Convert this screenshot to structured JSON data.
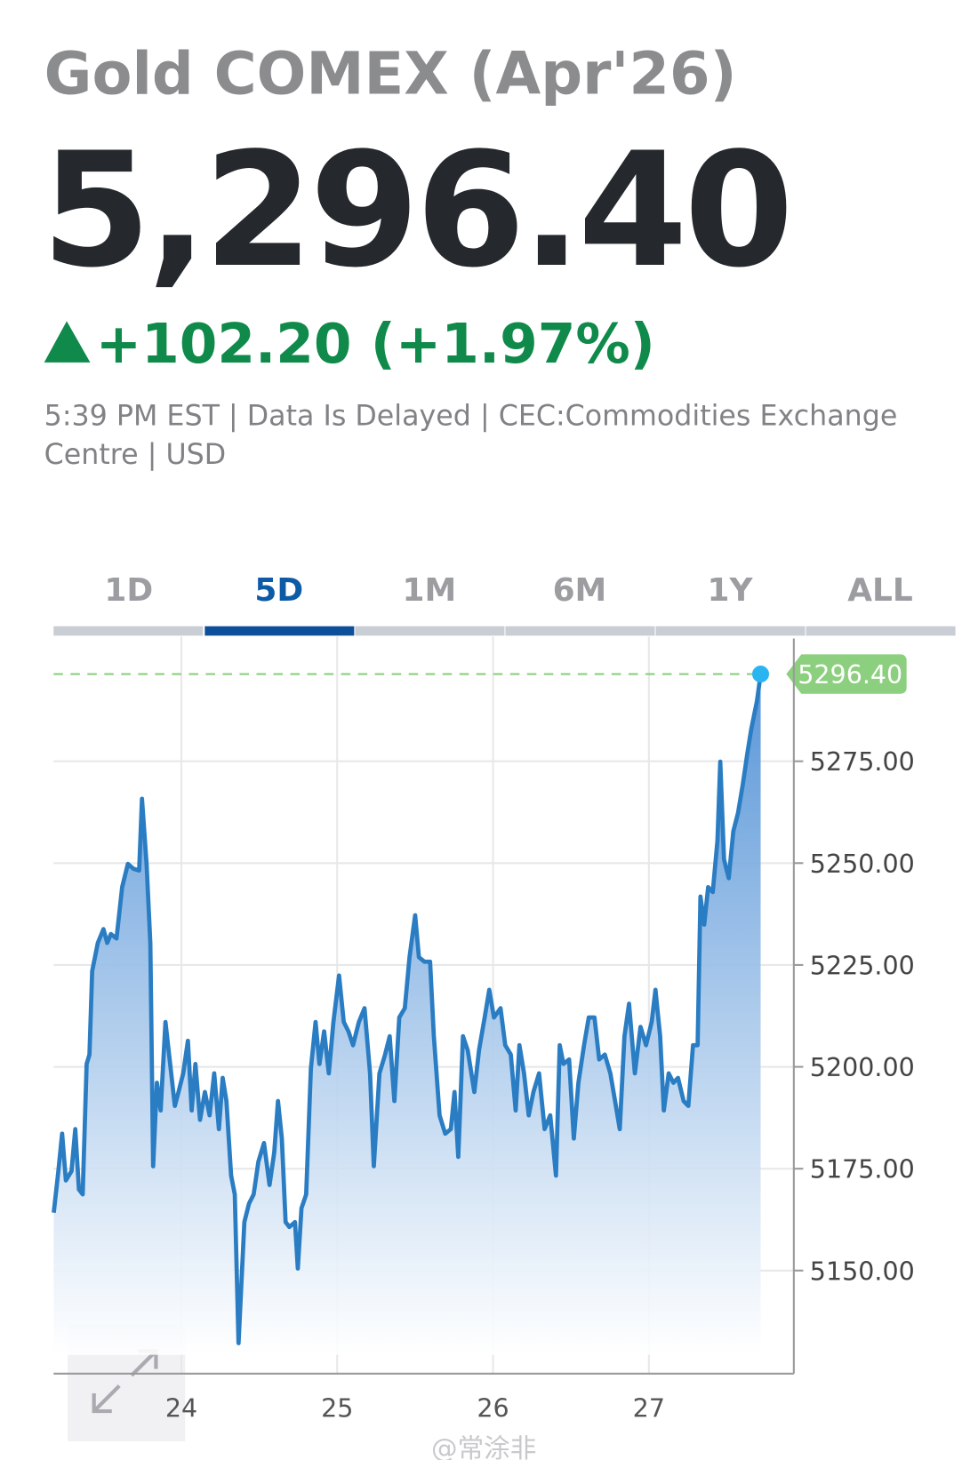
{
  "header": {
    "title": "Gold COMEX (Apr'26)",
    "price": "5,296.40",
    "change": "+102.20 (+1.97%)",
    "info_line1": "5:39 PM EST | Data Is Delayed | CEC:Commodities Exchange",
    "info_line2": "Centre | USD"
  },
  "tabs": [
    "1D",
    "5D",
    "1M",
    "6M",
    "1Y",
    "ALL"
  ],
  "active_tab": 1,
  "watermark": "@常涂非",
  "chart_data": {
    "type": "line",
    "x": [
      23.181,
      23.211,
      23.235,
      23.259,
      23.295,
      23.319,
      23.343,
      23.367,
      23.392,
      23.41,
      23.428,
      23.464,
      23.5,
      23.524,
      23.548,
      23.584,
      23.62,
      23.657,
      23.693,
      23.729,
      23.747,
      23.777,
      23.801,
      23.819,
      23.843,
      23.867,
      23.898,
      23.928,
      23.958,
      23.982,
      24.012,
      24.042,
      24.066,
      24.09,
      24.12,
      24.151,
      24.181,
      24.211,
      24.241,
      24.265,
      24.289,
      24.319,
      24.343,
      24.367,
      24.404,
      24.434,
      24.464,
      24.494,
      24.53,
      24.566,
      24.596,
      24.62,
      24.645,
      24.669,
      24.693,
      24.729,
      24.747,
      24.771,
      24.801,
      24.831,
      24.861,
      24.886,
      24.916,
      24.946,
      24.976,
      25.012,
      25.042,
      25.072,
      25.102,
      25.139,
      25.175,
      25.211,
      25.235,
      25.271,
      25.307,
      25.337,
      25.367,
      25.398,
      25.434,
      25.464,
      25.5,
      25.524,
      25.56,
      25.596,
      25.62,
      25.657,
      25.693,
      25.729,
      25.753,
      25.777,
      25.807,
      25.837,
      25.88,
      25.91,
      25.946,
      25.976,
      26.006,
      26.048,
      26.078,
      26.114,
      26.145,
      26.169,
      26.199,
      26.229,
      26.259,
      26.295,
      26.331,
      26.367,
      26.404,
      26.428,
      26.452,
      26.488,
      26.518,
      26.548,
      26.584,
      26.614,
      26.651,
      26.681,
      26.717,
      26.753,
      26.783,
      26.813,
      26.843,
      26.873,
      26.91,
      26.946,
      26.982,
      27.018,
      27.042,
      27.072,
      27.096,
      27.127,
      27.157,
      27.187,
      27.223,
      27.253,
      27.283,
      27.313,
      27.331,
      27.355,
      27.38,
      27.41,
      27.44,
      27.458,
      27.482,
      27.512,
      27.542,
      27.572,
      27.602,
      27.633,
      27.657,
      27.693,
      27.717
    ],
    "values": [
      5164.2,
      5174.4,
      5183.6,
      5172.1,
      5174.4,
      5184.7,
      5169.9,
      5168.7,
      5200.7,
      5203.0,
      5223.5,
      5230.4,
      5233.8,
      5230.4,
      5232.6,
      5231.5,
      5244.1,
      5249.8,
      5248.6,
      5248.2,
      5265.8,
      5249.8,
      5230.4,
      5175.6,
      5196.1,
      5189.3,
      5211.0,
      5200.7,
      5190.4,
      5193.8,
      5198.4,
      5206.4,
      5189.3,
      5200.7,
      5187.0,
      5193.8,
      5188.1,
      5198.4,
      5184.7,
      5197.3,
      5191.6,
      5173.3,
      5168.7,
      5132.2,
      5161.9,
      5166.4,
      5168.7,
      5176.7,
      5181.3,
      5171.0,
      5179.0,
      5191.6,
      5182.4,
      5161.9,
      5160.7,
      5161.9,
      5150.5,
      5165.3,
      5168.7,
      5199.5,
      5211.0,
      5200.7,
      5208.7,
      5198.4,
      5211.0,
      5222.4,
      5211.0,
      5208.7,
      5205.3,
      5211.0,
      5214.4,
      5198.4,
      5175.6,
      5198.4,
      5203.0,
      5207.5,
      5191.6,
      5212.1,
      5214.4,
      5226.9,
      5237.2,
      5226.9,
      5225.8,
      5225.8,
      5207.5,
      5188.1,
      5183.6,
      5184.7,
      5193.8,
      5177.9,
      5207.5,
      5204.1,
      5193.8,
      5204.1,
      5212.1,
      5218.9,
      5212.1,
      5214.4,
      5205.3,
      5203.0,
      5189.3,
      5205.3,
      5198.4,
      5188.1,
      5193.8,
      5198.4,
      5184.7,
      5188.1,
      5173.3,
      5205.3,
      5200.7,
      5201.8,
      5182.4,
      5196.1,
      5205.3,
      5212.1,
      5212.1,
      5201.8,
      5203.0,
      5198.4,
      5191.6,
      5184.7,
      5207.5,
      5215.5,
      5198.4,
      5209.8,
      5205.3,
      5211.0,
      5218.9,
      5207.5,
      5189.3,
      5198.4,
      5196.1,
      5197.3,
      5191.6,
      5190.4,
      5205.3,
      5205.3,
      5241.8,
      5234.9,
      5244.1,
      5242.9,
      5255.5,
      5274.9,
      5250.9,
      5246.3,
      5257.8,
      5262.3,
      5269.2,
      5277.2,
      5282.9,
      5289.7,
      5296.4
    ],
    "color": "#2a7dc3",
    "xlim": [
      23.18,
      27.93
    ],
    "ylim": [
      5124.7,
      5305.6
    ],
    "xticks": [
      24,
      25,
      26,
      27
    ],
    "yticks": [
      {
        "value": 5150,
        "label": "5150.00"
      },
      {
        "value": 5175,
        "label": "5175.00"
      },
      {
        "value": 5200,
        "label": "5200.00"
      },
      {
        "value": 5225,
        "label": "5225.00"
      },
      {
        "value": 5250,
        "label": "5250.00"
      },
      {
        "value": 5275,
        "label": "5275.00"
      }
    ],
    "grid": true,
    "reference_line": {
      "value": 5296.4,
      "label": "5296.40",
      "color": "#8ccf7e"
    }
  }
}
